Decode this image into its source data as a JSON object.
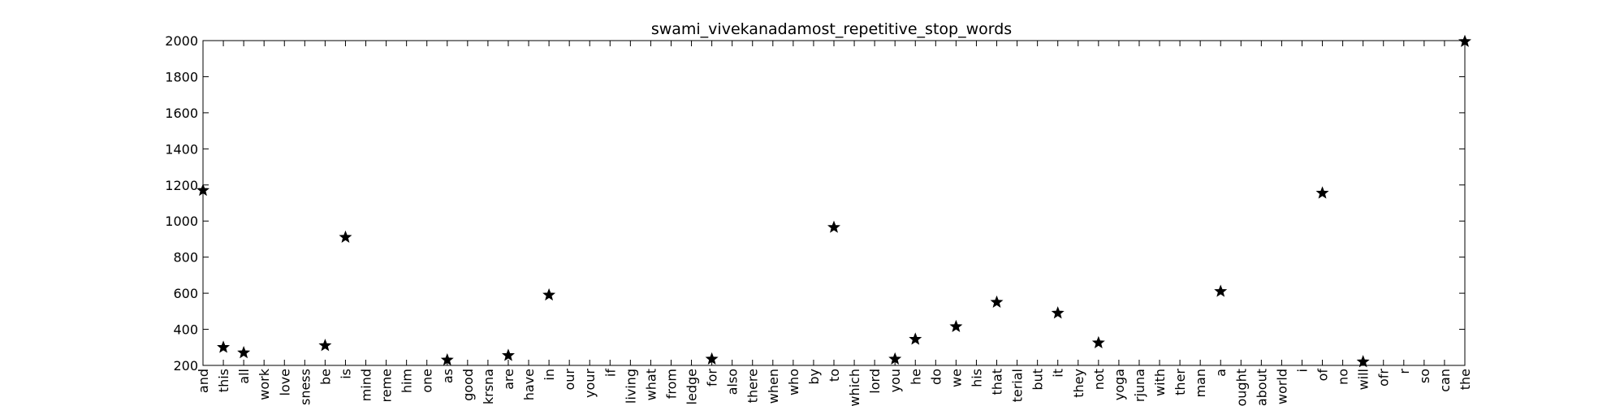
{
  "chart_data": {
    "type": "scatter",
    "title": "swami_vivekanadamost_repetitive_stop_words",
    "xlabel": "",
    "ylabel": "",
    "ylim": [
      200,
      2000
    ],
    "yticks": [
      200,
      400,
      600,
      800,
      1000,
      1200,
      1400,
      1600,
      1800,
      2000
    ],
    "grid": false,
    "marker": "star",
    "marker_color": "#000000",
    "categories": [
      "and",
      "this",
      "all",
      "work",
      "love",
      "sness",
      "be",
      "is",
      "mind",
      "reme",
      "him",
      "one",
      "as",
      "good",
      "krsna",
      "are",
      "have",
      "in",
      "our",
      "your",
      "if",
      "living",
      "what",
      "from",
      "ledge",
      "for",
      "also",
      "there",
      "when",
      "who",
      "by",
      "to",
      "which",
      "lord",
      "you",
      "he",
      "do",
      "we",
      "his",
      "that",
      "terial",
      "but",
      "it",
      "they",
      "not",
      "yoga",
      "rjuna",
      "with",
      "ther",
      "man",
      "a",
      "ought",
      "about",
      "world",
      "i",
      "of",
      "no",
      "will",
      "ofr",
      "r",
      "so",
      "can",
      "the"
    ],
    "values": [
      1170,
      300,
      270,
      null,
      null,
      null,
      310,
      910,
      null,
      null,
      null,
      null,
      230,
      null,
      null,
      255,
      null,
      590,
      null,
      null,
      null,
      null,
      null,
      null,
      null,
      235,
      null,
      null,
      null,
      null,
      null,
      965,
      null,
      null,
      235,
      345,
      null,
      415,
      null,
      550,
      null,
      null,
      490,
      null,
      325,
      null,
      null,
      null,
      null,
      null,
      610,
      null,
      null,
      null,
      null,
      1155,
      null,
      220,
      null,
      null,
      null,
      null,
      1995
    ]
  }
}
